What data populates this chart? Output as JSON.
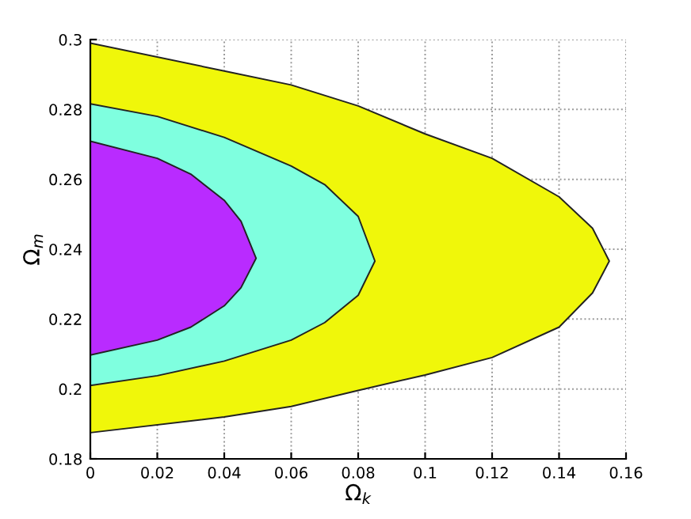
{
  "chart_data": {
    "type": "area",
    "xlabel": "Ω$_{k}$",
    "ylabel": "Ω$_{m}$",
    "xlim": [
      0,
      0.16
    ],
    "ylim": [
      0.18,
      0.3
    ],
    "xticks": [
      0,
      0.02,
      0.04,
      0.06,
      0.08,
      0.1,
      0.12,
      0.14,
      0.16
    ],
    "yticks": [
      0.18,
      0.2,
      0.22,
      0.24,
      0.26,
      0.28,
      0.3
    ],
    "grid": true,
    "series": [
      {
        "color": "#f0f70a",
        "x": [
          0,
          0.04,
          0.06,
          0.08,
          0.1,
          0.12,
          0.14,
          0.15,
          0.155,
          0.15,
          0.14,
          0.12,
          0.1,
          0.08,
          0.06,
          0.04,
          0
        ],
        "values": [
          0.299,
          0.291,
          0.287,
          0.281,
          0.273,
          0.266,
          0.255,
          0.246,
          0.2366,
          0.2275,
          0.2177,
          0.209,
          0.204,
          0.1996,
          0.195,
          0.192,
          0.1875
        ]
      },
      {
        "color": "#7fffdf",
        "x": [
          0,
          0.02,
          0.04,
          0.06,
          0.07,
          0.08,
          0.085,
          0.08,
          0.07,
          0.06,
          0.04,
          0.02,
          0
        ],
        "values": [
          0.2816,
          0.278,
          0.272,
          0.2638,
          0.2585,
          0.2494,
          0.2366,
          0.2268,
          0.219,
          0.214,
          0.208,
          0.2038,
          0.201
        ]
      },
      {
        "color": "#b92bff",
        "x": [
          0,
          0.02,
          0.03,
          0.04,
          0.045,
          0.0495,
          0.045,
          0.04,
          0.03,
          0.02,
          0
        ],
        "values": [
          0.2709,
          0.266,
          0.2615,
          0.254,
          0.248,
          0.2374,
          0.229,
          0.2238,
          0.2177,
          0.214,
          0.2097
        ]
      }
    ]
  }
}
